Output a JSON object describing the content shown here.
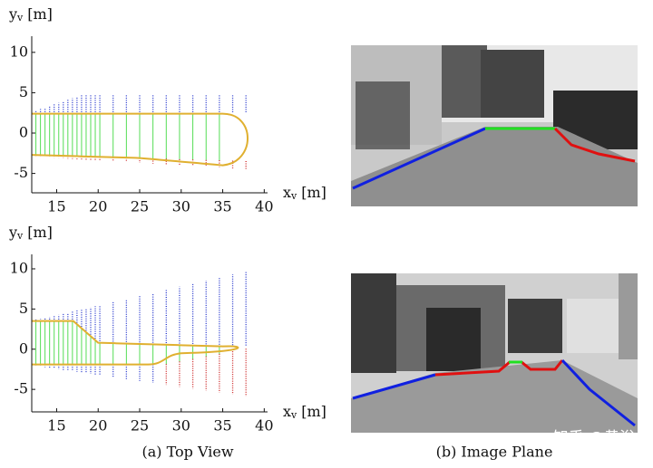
{
  "plots": [
    {
      "x_label": {
        "main": "x",
        "sub": "v",
        "unit": "[m]"
      },
      "y_label": {
        "main": "y",
        "sub": "v",
        "unit": "[m]"
      },
      "xlim": [
        12,
        40.4
      ],
      "ylim": [
        -7.4,
        12
      ],
      "xticks": [
        15,
        20,
        25,
        30,
        35,
        40
      ],
      "yticks": [
        -5,
        0,
        5,
        10
      ]
    },
    {
      "x_label": {
        "main": "x",
        "sub": "v",
        "unit": "[m]"
      },
      "y_label": {
        "main": "y",
        "sub": "v",
        "unit": "[m]"
      },
      "xlim": [
        12,
        40.4
      ],
      "ylim": [
        -7.8,
        11.8
      ],
      "xticks": [
        15,
        20,
        25,
        30,
        35,
        40
      ],
      "yticks": [
        -5,
        0,
        5,
        10
      ]
    }
  ],
  "captions": [
    "(a) Top View",
    "(b) Image Plane"
  ],
  "watermark": "知乎 @黄浴"
}
